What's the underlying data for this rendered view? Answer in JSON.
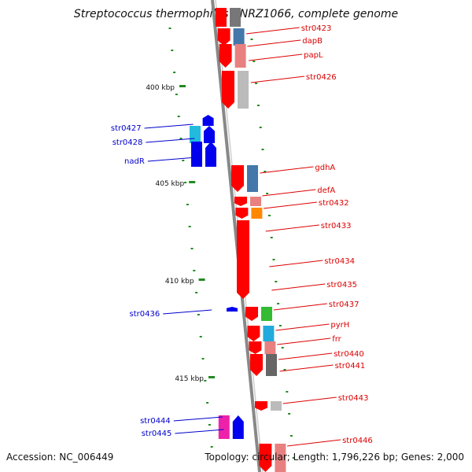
{
  "title": "Streptococcus thermophilus CNRZ1066, complete genome",
  "footer": {
    "accession": "Accession: NC_006449",
    "summary": "Topology: circular; Length: 1,796,226 bp; Genes: 2,000"
  },
  "colors": {
    "strand_line": "#888888",
    "scale_tick": "#228B22",
    "forward_label": "#dd0000",
    "reverse_label": "#0000cc"
  },
  "scale_marks": [
    "400 kbp",
    "405 kbp",
    "410 kbp",
    "415 kbp"
  ],
  "forward_genes": [
    "str0423",
    "dapB",
    "papL",
    "str0426",
    "gdhA",
    "defA",
    "str0432",
    "str0433",
    "str0434",
    "str0435",
    "str0437",
    "pyrH",
    "frr",
    "str0440",
    "str0441",
    "str0443",
    "str0446"
  ],
  "reverse_genes": [
    "str0427",
    "str0428",
    "nadR",
    "str0436",
    "str0444",
    "str0445"
  ]
}
